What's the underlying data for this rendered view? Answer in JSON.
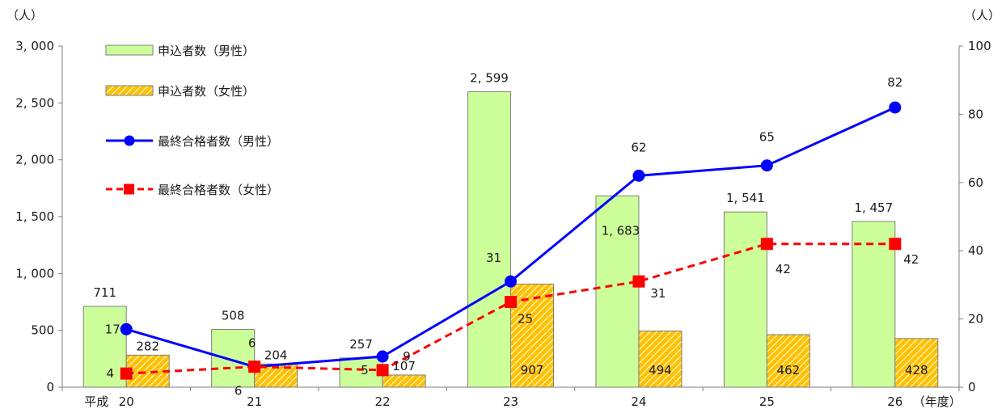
{
  "chart_data": {
    "type": "bar",
    "units": {
      "left": "（人）",
      "right": "（人）"
    },
    "x_prefix": "平成",
    "x_suffix": "（年度）",
    "categories": [
      "20",
      "21",
      "22",
      "23",
      "24",
      "25",
      "26"
    ],
    "left_axis": {
      "ylim": [
        0,
        3000
      ],
      "ticks": [
        0,
        500,
        1000,
        1500,
        2000,
        2500,
        3000
      ],
      "tick_labels": [
        "0",
        "500",
        "1, 000",
        "1, 500",
        "2, 000",
        "2, 500",
        "3, 000"
      ]
    },
    "right_axis": {
      "ylim": [
        0,
        100
      ],
      "ticks": [
        0,
        20,
        40,
        60,
        80,
        100
      ],
      "tick_labels": [
        "0",
        "20",
        "40",
        "60",
        "80",
        "100"
      ]
    },
    "series": [
      {
        "name": "申込者数（男性）",
        "type": "bar",
        "axis": "left",
        "color": "#ccff99",
        "values": [
          711,
          508,
          257,
          2599,
          1683,
          1541,
          1457
        ],
        "labels": [
          "711",
          "508",
          "257",
          "2, 599",
          "1, 683",
          "1, 541",
          "1, 457"
        ]
      },
      {
        "name": "申込者数（女性）",
        "type": "bar",
        "axis": "left",
        "color": "#ffc000",
        "pattern": "diagonal-hatch",
        "values": [
          282,
          204,
          107,
          907,
          494,
          462,
          428
        ],
        "labels": [
          "282",
          "204",
          "107",
          "907",
          "494",
          "462",
          "428"
        ]
      },
      {
        "name": "最終合格者数（男性）",
        "type": "line",
        "axis": "right",
        "color": "#0000ff",
        "marker": "circle",
        "values": [
          17,
          6,
          9,
          31,
          62,
          65,
          82
        ],
        "labels": [
          "17",
          "6",
          "9",
          "31",
          "62",
          "65",
          "82"
        ]
      },
      {
        "name": "最終合格者数（女性）",
        "type": "line",
        "axis": "right",
        "color": "#ff0000",
        "marker": "square",
        "dashed": true,
        "values": [
          4,
          6,
          5,
          25,
          31,
          42,
          42
        ],
        "labels": [
          "4",
          "6",
          "5",
          "25",
          "31",
          "42",
          "42"
        ]
      }
    ],
    "legend_position": "top-left",
    "grid": false
  }
}
